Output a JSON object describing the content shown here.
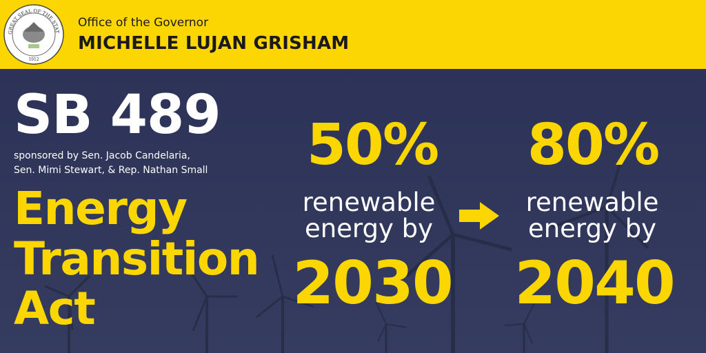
{
  "header": {
    "office_title": "Office of the Governor",
    "governor_name": "MICHELLE LUJAN GRISHAM",
    "seal_text": "GREAT SEAL OF THE STATE OF NEW MEXICO 1912"
  },
  "bill": {
    "number": "SB 489",
    "sponsors_line1": "sponsored by Sen. Jacob Candelaria,",
    "sponsors_line2": "Sen. Mimi Stewart, & Rep. Nathan Small",
    "act_line1": "Energy",
    "act_line2": "Transition",
    "act_line3": "Act"
  },
  "targets": [
    {
      "percent": "50%",
      "line1": "renewable",
      "line2": "energy by",
      "year": "2030"
    },
    {
      "percent": "80%",
      "line1": "renewable",
      "line2": "energy by",
      "year": "2040"
    }
  ],
  "colors": {
    "accent": "#fcd600",
    "background": "#2f3558",
    "text": "#ffffff"
  },
  "icons": {
    "arrow": "arrow-right-icon",
    "seal": "state-seal-icon"
  }
}
